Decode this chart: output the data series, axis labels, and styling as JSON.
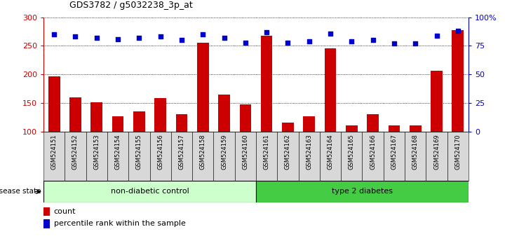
{
  "title": "GDS3782 / g5032238_3p_at",
  "samples": [
    "GSM524151",
    "GSM524152",
    "GSM524153",
    "GSM524154",
    "GSM524155",
    "GSM524156",
    "GSM524157",
    "GSM524158",
    "GSM524159",
    "GSM524160",
    "GSM524161",
    "GSM524162",
    "GSM524163",
    "GSM524164",
    "GSM524165",
    "GSM524166",
    "GSM524167",
    "GSM524168",
    "GSM524169",
    "GSM524170"
  ],
  "counts": [
    196,
    160,
    151,
    126,
    135,
    158,
    130,
    255,
    165,
    148,
    268,
    115,
    126,
    246,
    111,
    130,
    110,
    110,
    206,
    278
  ],
  "percentiles": [
    85,
    83,
    82,
    81,
    82,
    83,
    80,
    85,
    82,
    78,
    87,
    78,
    79,
    86,
    79,
    80,
    77,
    77,
    84,
    88
  ],
  "ylim_left": [
    100,
    300
  ],
  "ylim_right": [
    0,
    100
  ],
  "yticks_left": [
    100,
    150,
    200,
    250,
    300
  ],
  "yticks_right": [
    0,
    25,
    50,
    75,
    100
  ],
  "ytick_right_labels": [
    "0",
    "25",
    "50",
    "75",
    "100%"
  ],
  "bar_color": "#cc0000",
  "dot_color": "#0000cc",
  "grid_color": "#000000",
  "axis_color_left": "#cc0000",
  "axis_color_right": "#0000cc",
  "non_diabetic_count": 10,
  "type2_count": 10,
  "group1_label": "non-diabetic control",
  "group2_label": "type 2 diabetes",
  "group1_color": "#ccffcc",
  "group2_color": "#44cc44",
  "disease_state_label": "disease state",
  "legend_count_label": "count",
  "legend_percentile_label": "percentile rank within the sample",
  "bar_width": 0.55,
  "tick_bg_color": "#d8d8d8"
}
